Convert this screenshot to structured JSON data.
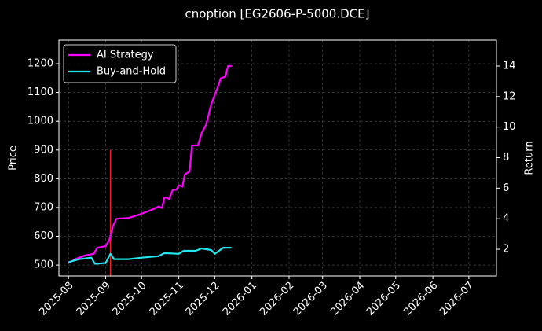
{
  "chart_data": {
    "type": "line",
    "title": "cnoption [EG2606-P-5000.DCE]",
    "y_label": "Price",
    "y2_label": "Return",
    "xlim": [
      "2025-07-24",
      "2026-07-24"
    ],
    "xticks": [
      {
        "value": "2025-08-01",
        "label": "2025-08"
      },
      {
        "value": "2025-09-01",
        "label": "2025-09"
      },
      {
        "value": "2025-10-01",
        "label": "2025-10"
      },
      {
        "value": "2025-11-01",
        "label": "2025-11"
      },
      {
        "value": "2025-12-01",
        "label": "2025-12"
      },
      {
        "value": "2026-01-01",
        "label": "2026-01"
      },
      {
        "value": "2026-02-01",
        "label": "2026-02"
      },
      {
        "value": "2026-03-01",
        "label": "2026-03"
      },
      {
        "value": "2026-04-01",
        "label": "2026-04"
      },
      {
        "value": "2026-05-01",
        "label": "2026-05"
      },
      {
        "value": "2026-06-01",
        "label": "2026-06"
      },
      {
        "value": "2026-07-01",
        "label": "2026-07"
      }
    ],
    "ylim": [
      462,
      1282
    ],
    "yticks": [
      500,
      600,
      700,
      800,
      900,
      1000,
      1100,
      1200
    ],
    "y2lim": [
      0.25,
      15.7
    ],
    "y2ticks": [
      2,
      4,
      6,
      8,
      10,
      12,
      14
    ],
    "grid": true,
    "legend": "upper left",
    "vline": {
      "x": "2025-09-05",
      "ymax": 900,
      "color": "#ff2020"
    },
    "series": [
      {
        "name": "AI Strategy",
        "color": "#ff00ff",
        "axis": "y2",
        "x": [
          "2025-08-01",
          "2025-08-08",
          "2025-08-15",
          "2025-08-22",
          "2025-08-25",
          "2025-09-01",
          "2025-09-04",
          "2025-09-07",
          "2025-09-10",
          "2025-09-20",
          "2025-09-30",
          "2025-10-10",
          "2025-10-15",
          "2025-10-18",
          "2025-10-20",
          "2025-10-24",
          "2025-10-27",
          "2025-10-30",
          "2025-11-01",
          "2025-11-04",
          "2025-11-06",
          "2025-11-10",
          "2025-11-12",
          "2025-11-17",
          "2025-11-20",
          "2025-11-24",
          "2025-11-28",
          "2025-12-03",
          "2025-12-06",
          "2025-12-10",
          "2025-12-12",
          "2025-12-15"
        ],
        "values": [
          1.1,
          1.4,
          1.6,
          1.7,
          2.1,
          2.2,
          2.6,
          3.5,
          4.0,
          4.05,
          4.3,
          4.6,
          4.8,
          4.7,
          5.4,
          5.3,
          5.9,
          5.9,
          6.2,
          6.1,
          6.9,
          7.1,
          8.8,
          8.8,
          9.6,
          10.2,
          11.5,
          12.5,
          13.2,
          13.3,
          14.0,
          14.0
        ]
      },
      {
        "name": "Buy-and-Hold",
        "color": "#22e5f0",
        "axis": "y2",
        "x": [
          "2025-08-01",
          "2025-08-10",
          "2025-08-20",
          "2025-08-23",
          "2025-09-01",
          "2025-09-05",
          "2025-09-08",
          "2025-09-20",
          "2025-10-01",
          "2025-10-15",
          "2025-10-20",
          "2025-11-01",
          "2025-11-05",
          "2025-11-15",
          "2025-11-20",
          "2025-11-28",
          "2025-12-01",
          "2025-12-08",
          "2025-12-15"
        ],
        "values": [
          1.15,
          1.35,
          1.45,
          1.05,
          1.1,
          1.7,
          1.35,
          1.35,
          1.45,
          1.55,
          1.75,
          1.7,
          1.9,
          1.9,
          2.05,
          1.95,
          1.7,
          2.1,
          2.1
        ]
      }
    ]
  }
}
